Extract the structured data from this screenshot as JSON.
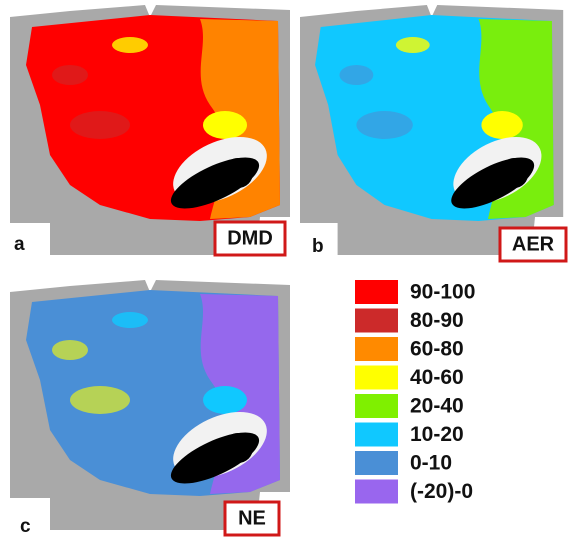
{
  "panels": [
    {
      "letter": "a",
      "label": "DMD"
    },
    {
      "letter": "b",
      "label": "AER"
    },
    {
      "letter": "c",
      "label": "NE"
    }
  ],
  "legend": [
    {
      "label": "90-100",
      "color": "#ff0000"
    },
    {
      "label": "80-90",
      "color": "#cc2a2a"
    },
    {
      "label": "60-80",
      "color": "#ff8a00"
    },
    {
      "label": "40-60",
      "color": "#ffff00"
    },
    {
      "label": "20-40",
      "color": "#7ff000"
    },
    {
      "label": "10-20",
      "color": "#10c8ff"
    },
    {
      "label": "0-10",
      "color": "#4a8fd6"
    },
    {
      "label": "(-20)-0",
      "color": "#9966ee"
    }
  ]
}
